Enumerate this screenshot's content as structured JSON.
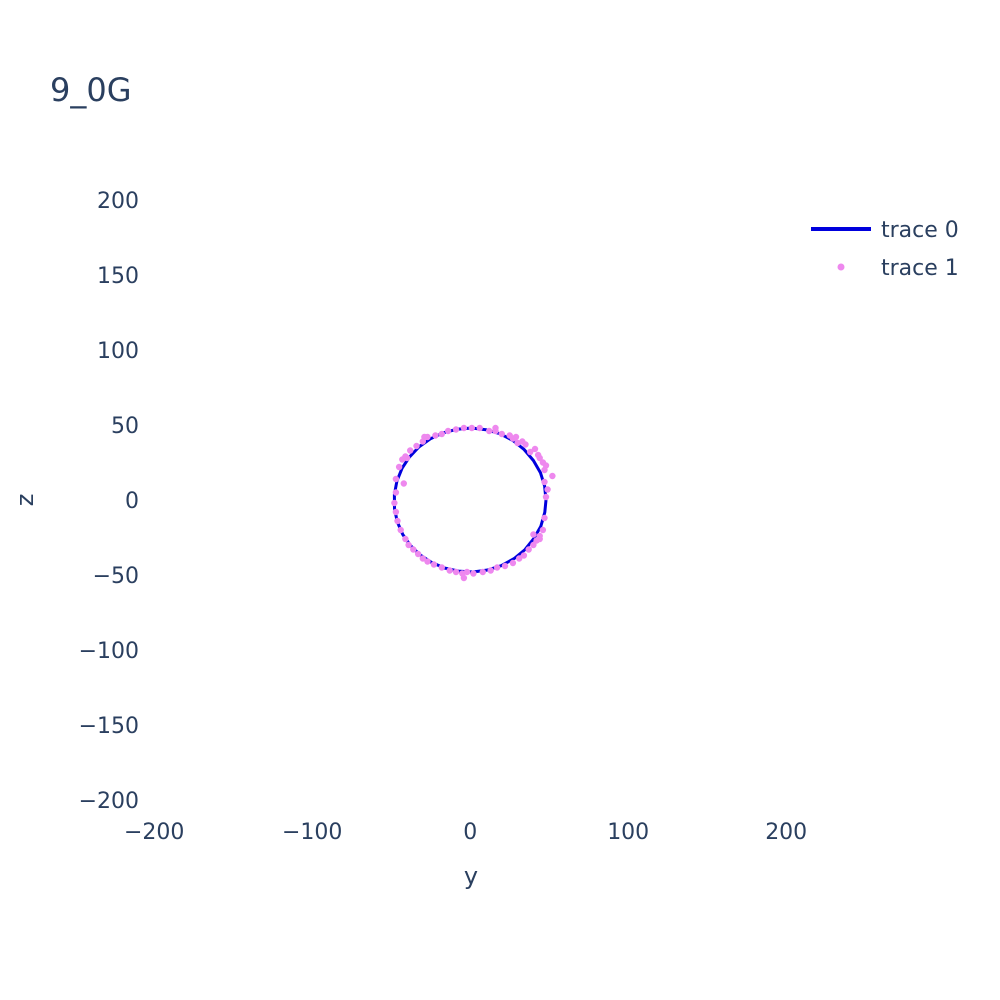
{
  "chart_data": {
    "type": "scatter",
    "title": "9_0G",
    "xlabel": "y",
    "ylabel": "z",
    "xlim": [
      -240,
      260
    ],
    "ylim": [
      -208,
      208
    ],
    "x_ticks": [
      -200,
      -100,
      0,
      100,
      200
    ],
    "y_ticks": [
      -200,
      -150,
      -100,
      -50,
      0,
      50,
      100,
      150,
      200
    ],
    "x_tick_labels": [
      "−200",
      "−100",
      "0",
      "100",
      "200"
    ],
    "y_tick_labels": [
      "−200",
      "−150",
      "−100",
      "−50",
      "0",
      "50",
      "100",
      "150",
      "200"
    ],
    "grid": false,
    "legend_position": "top-right",
    "series": [
      {
        "name": "trace 0",
        "mode": "lines",
        "color": "#0000dd",
        "x": [
          48,
          47.1,
          44.4,
          40.0,
          34.2,
          27.0,
          18.8,
          10.0,
          0.9,
          -8.3,
          -17.0,
          -25.2,
          -32.4,
          -38.5,
          -43.1,
          -46.4,
          -48.0,
          -47.9,
          -46.2,
          -42.7,
          -37.9,
          -31.7,
          -24.5,
          -16.3,
          -7.5,
          1.8,
          11.0,
          19.6,
          27.8,
          34.7,
          40.4,
          44.7,
          47.2,
          48.0
        ],
        "y": [
          0,
          9.4,
          18.3,
          26.3,
          33.6,
          39.7,
          44.2,
          46.9,
          48.0,
          47.2,
          44.8,
          40.8,
          35.4,
          28.6,
          21.2,
          12.6,
          3.7,
          -5.6,
          -14.4,
          -22.9,
          -30.2,
          -36.6,
          -41.6,
          -45.3,
          -47.4,
          -48.0,
          -46.7,
          -43.8,
          -39.1,
          -33.1,
          -25.5,
          -17.6,
          -8.2,
          0
        ]
      },
      {
        "name": "trace 1",
        "mode": "markers",
        "color": "#ee88ee",
        "x": [
          48,
          49,
          47,
          52,
          47,
          48,
          46,
          44,
          43,
          38,
          41,
          35,
          33,
          29,
          27,
          25,
          20,
          16,
          12,
          6,
          1,
          -4,
          -9,
          -14,
          -18,
          -22,
          -27,
          -30,
          -34,
          -38,
          -41,
          -43,
          -45,
          -47,
          -47,
          -48,
          -47,
          -46,
          -44,
          -41,
          -39,
          -36,
          -33,
          -30,
          -27,
          -23,
          -18,
          -13,
          -9,
          -5,
          -2,
          2,
          8,
          13,
          17,
          22,
          27,
          31,
          34,
          37,
          40,
          42,
          44,
          46,
          47,
          44,
          40,
          30,
          16,
          -4,
          -29,
          -42,
          -40
        ],
        "y": [
          2,
          7,
          12,
          16,
          20,
          23,
          25,
          28,
          30,
          32,
          34,
          37,
          39,
          42,
          41,
          43,
          44,
          46,
          46,
          48,
          48,
          48,
          47,
          46,
          44,
          43,
          42,
          39,
          36,
          33,
          29,
          27,
          22,
          14,
          5,
          -2,
          -8,
          -14,
          -20,
          -26,
          -30,
          -33,
          -36,
          -39,
          -41,
          -43,
          -45,
          -47,
          -48,
          -49,
          -48,
          -49,
          -48,
          -47,
          -45,
          -44,
          -42,
          -39,
          -37,
          -33,
          -30,
          -27,
          -24,
          -20,
          -12,
          -26,
          -23,
          38,
          48,
          -52,
          42,
          11,
          28
        ]
      }
    ]
  }
}
